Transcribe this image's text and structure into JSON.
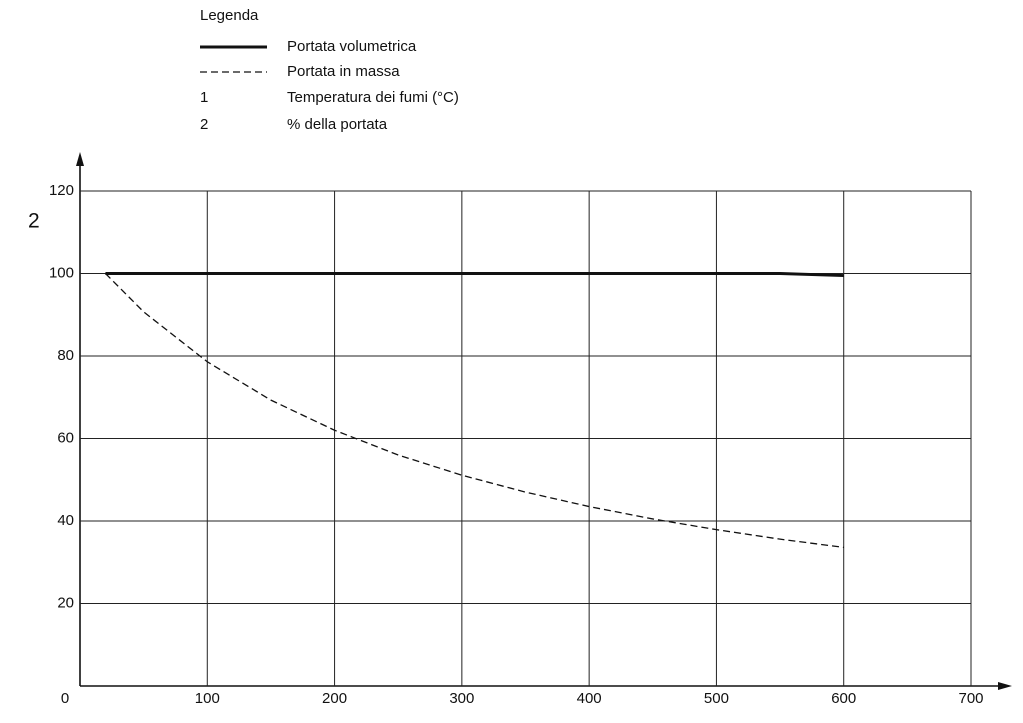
{
  "chart_data": {
    "type": "line",
    "legend_title": "Legenda",
    "y_label": "2",
    "legend_keys": [
      {
        "key": "1",
        "label": "Temperatura dei fumi (°C)"
      },
      {
        "key": "2",
        "label": "% della portata"
      }
    ],
    "x": [
      20,
      50,
      100,
      150,
      200,
      250,
      300,
      350,
      400,
      450,
      500,
      550,
      600
    ],
    "series": [
      {
        "name": "Portata volumetrica",
        "color": "#111111",
        "line_style": "solid",
        "values": [
          100,
          100,
          100,
          100,
          100,
          100,
          100,
          100,
          100,
          100,
          100,
          100,
          99.5
        ]
      },
      {
        "name": "Portata in massa",
        "color": "#111111",
        "line_style": "dashed",
        "values": [
          100,
          90.7,
          78.6,
          69.3,
          62.0,
          56.0,
          51.1,
          47.0,
          43.5,
          40.5,
          37.9,
          35.6,
          33.6
        ]
      }
    ],
    "xlim": [
      0,
      700
    ],
    "xticks": [
      0,
      100,
      200,
      300,
      400,
      500,
      600,
      700
    ],
    "ylim": [
      0,
      120
    ],
    "yticks": [
      20,
      40,
      60,
      80,
      100,
      120
    ],
    "grid": true
  }
}
